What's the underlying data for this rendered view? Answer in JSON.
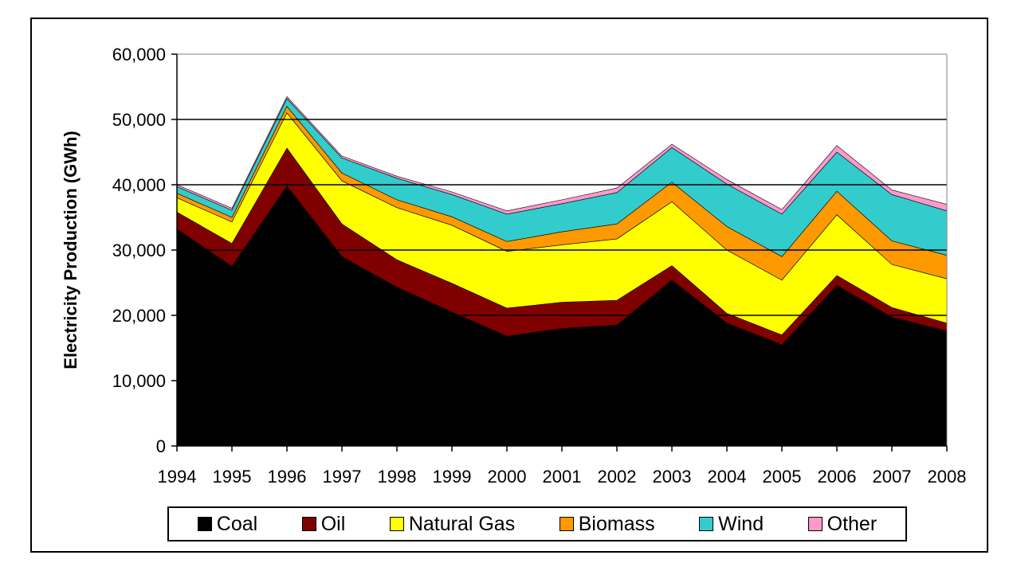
{
  "chart_data": {
    "type": "area",
    "stacked": true,
    "title": "",
    "xlabel": "",
    "ylabel": "Electricity Production (GWh)",
    "ylim": [
      0,
      60000
    ],
    "yticks": [
      "0",
      "10,000",
      "20,000",
      "30,000",
      "40,000",
      "50,000",
      "60,000"
    ],
    "categories": [
      "1994",
      "1995",
      "1996",
      "1997",
      "1998",
      "1999",
      "2000",
      "2001",
      "2002",
      "2003",
      "2004",
      "2005",
      "2006",
      "2007",
      "2008"
    ],
    "grid": "horizontal major gridlines",
    "legend_position": "bottom",
    "series": [
      {
        "name": "Coal",
        "color": "#000000",
        "values": [
          33200,
          27500,
          39800,
          29000,
          24300,
          20500,
          16800,
          18000,
          18500,
          25400,
          18800,
          15500,
          24600,
          19700,
          17600
        ]
      },
      {
        "name": "Oil",
        "color": "#800000",
        "values": [
          2600,
          3500,
          5800,
          5000,
          4200,
          4400,
          4300,
          4000,
          3800,
          2200,
          1500,
          1500,
          1500,
          1500,
          1200
        ]
      },
      {
        "name": "Natural Gas",
        "color": "#FFFF00",
        "values": [
          2200,
          3300,
          5400,
          6600,
          8000,
          8900,
          8700,
          8800,
          9400,
          9800,
          9700,
          8400,
          9300,
          6600,
          6800
        ]
      },
      {
        "name": "Biomass",
        "color": "#FF9900",
        "values": [
          700,
          700,
          1000,
          1200,
          1200,
          1300,
          1500,
          2000,
          2300,
          3000,
          3600,
          3600,
          3600,
          3600,
          3600
        ]
      },
      {
        "name": "Wind",
        "color": "#33CCCC",
        "values": [
          1000,
          1100,
          1200,
          2300,
          3300,
          3400,
          4200,
          4300,
          4800,
          5300,
          6500,
          6500,
          6000,
          7100,
          6800
        ]
      },
      {
        "name": "Other",
        "color": "#FF99CC",
        "values": [
          300,
          300,
          300,
          300,
          300,
          400,
          500,
          600,
          700,
          500,
          700,
          700,
          1000,
          700,
          1000
        ]
      }
    ]
  }
}
